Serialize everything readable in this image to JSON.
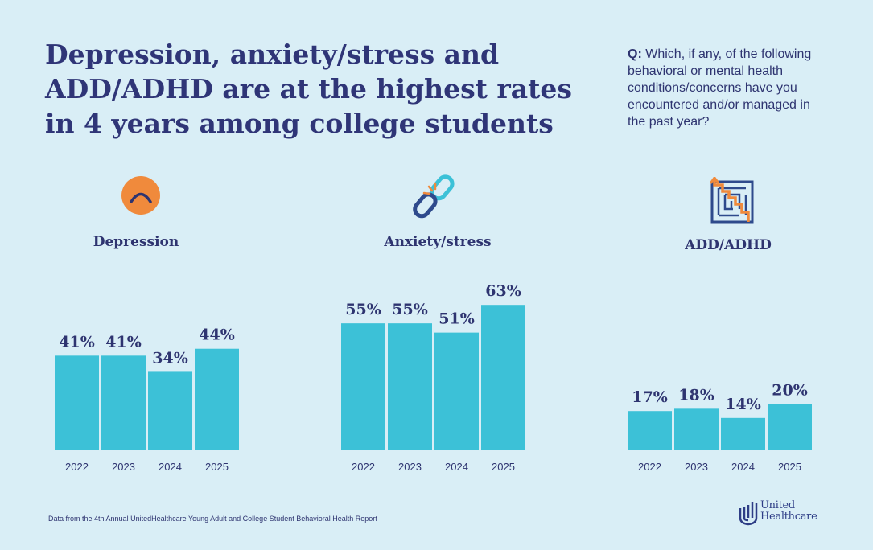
{
  "headline": "Depression, anxiety/stress and ADD/ADHD are at the highest rates in 4 years among college students",
  "question": {
    "prefix": "Q:",
    "text": "Which, if any, of the following behavioral or mental health conditions/concerns have you encountered and/or managed in the past year?"
  },
  "footer": "Data from the 4th Annual UnitedHealthcare Young Adult and College Student Behavioral Health Report",
  "logo": {
    "line1": "United",
    "line2": "Healthcare"
  },
  "colors": {
    "bar": "#3cc1d7",
    "text": "#2e3470",
    "background": "#d9eef6",
    "accent": "#f08a3c"
  },
  "icons": [
    "sad-face-icon",
    "broken-chain-icon",
    "maze-icon"
  ],
  "chart_data": [
    {
      "type": "bar",
      "title": "Depression",
      "categories": [
        "2022",
        "2023",
        "2024",
        "2025"
      ],
      "values": [
        41,
        41,
        34,
        44
      ],
      "labels": [
        "41%",
        "41%",
        "34%",
        "44%"
      ]
    },
    {
      "type": "bar",
      "title": "Anxiety/stress",
      "categories": [
        "2022",
        "2023",
        "2024",
        "2025"
      ],
      "values": [
        55,
        55,
        51,
        63
      ],
      "labels": [
        "55%",
        "55%",
        "51%",
        "63%"
      ]
    },
    {
      "type": "bar",
      "title": "ADD/ADHD",
      "categories": [
        "2022",
        "2023",
        "2024",
        "2025"
      ],
      "values": [
        17,
        18,
        14,
        20
      ],
      "labels": [
        "17%",
        "18%",
        "14%",
        "20%"
      ]
    }
  ]
}
